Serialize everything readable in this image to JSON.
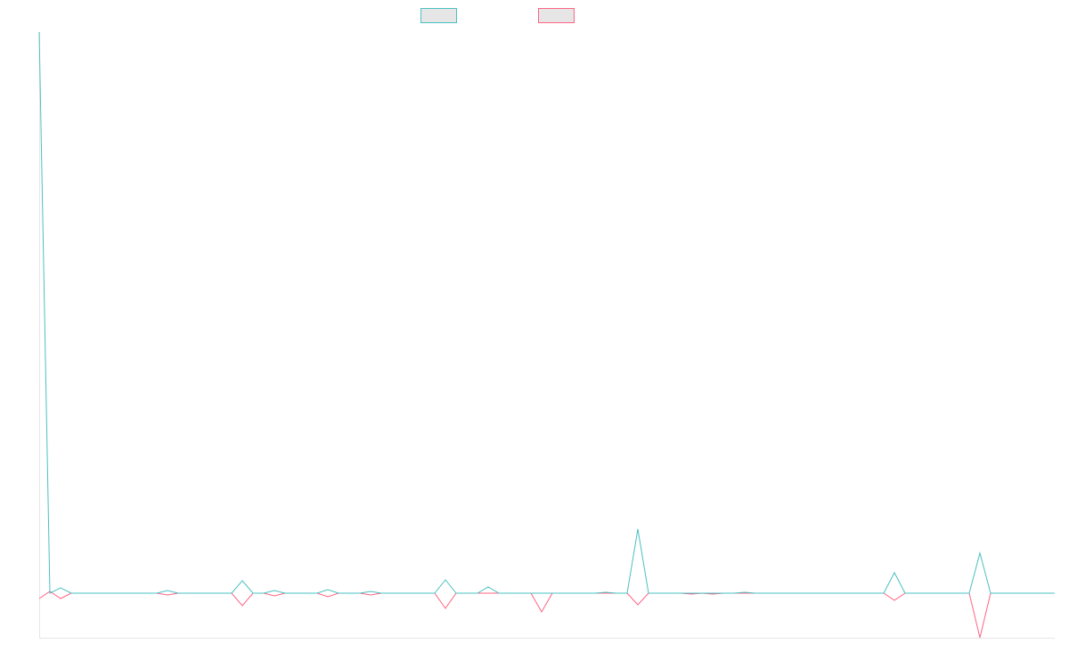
{
  "chart_data": {
    "type": "line",
    "ylim": [
      -50,
      630
    ],
    "series": [
      {
        "color": "#4bc0c0",
        "values": [
          630,
          0,
          6,
          0,
          0,
          0,
          0,
          0,
          0,
          0,
          0,
          0,
          3,
          0,
          0,
          0,
          0,
          0,
          0,
          14,
          0,
          0,
          3,
          0,
          0,
          0,
          0,
          4,
          0,
          0,
          0,
          2,
          0,
          0,
          0,
          0,
          0,
          0,
          15,
          0,
          0,
          0,
          7,
          0,
          0,
          0,
          0,
          0,
          0,
          0,
          0,
          0,
          0,
          1,
          0,
          0,
          72,
          0,
          0,
          0,
          0,
          0,
          0,
          0,
          0,
          0,
          1,
          0,
          0,
          0,
          0,
          0,
          0,
          0,
          0,
          0,
          0,
          0,
          0,
          0,
          23,
          0,
          0,
          0,
          0,
          0,
          0,
          0,
          45,
          0,
          0,
          0,
          0,
          0,
          0,
          0
        ]
      },
      {
        "color": "#ff6384",
        "values": [
          -6,
          2,
          -6,
          0,
          0,
          0,
          0,
          0,
          0,
          0,
          0,
          0,
          -2,
          0,
          0,
          0,
          0,
          0,
          0,
          -14,
          0,
          0,
          -3,
          0,
          0,
          0,
          0,
          -4,
          0,
          0,
          0,
          -2,
          0,
          0,
          0,
          0,
          0,
          0,
          -17,
          0,
          0,
          0,
          0,
          0,
          0,
          0,
          0,
          -21,
          0,
          0,
          0,
          0,
          0,
          0,
          0,
          0,
          -13,
          0,
          0,
          0,
          0,
          -1,
          0,
          -1,
          0,
          0,
          0,
          0,
          0,
          0,
          0,
          0,
          0,
          0,
          0,
          0,
          0,
          0,
          0,
          0,
          -8,
          0,
          0,
          0,
          0,
          0,
          0,
          0,
          -50,
          0,
          0,
          0,
          0,
          0,
          0,
          0
        ]
      }
    ]
  }
}
